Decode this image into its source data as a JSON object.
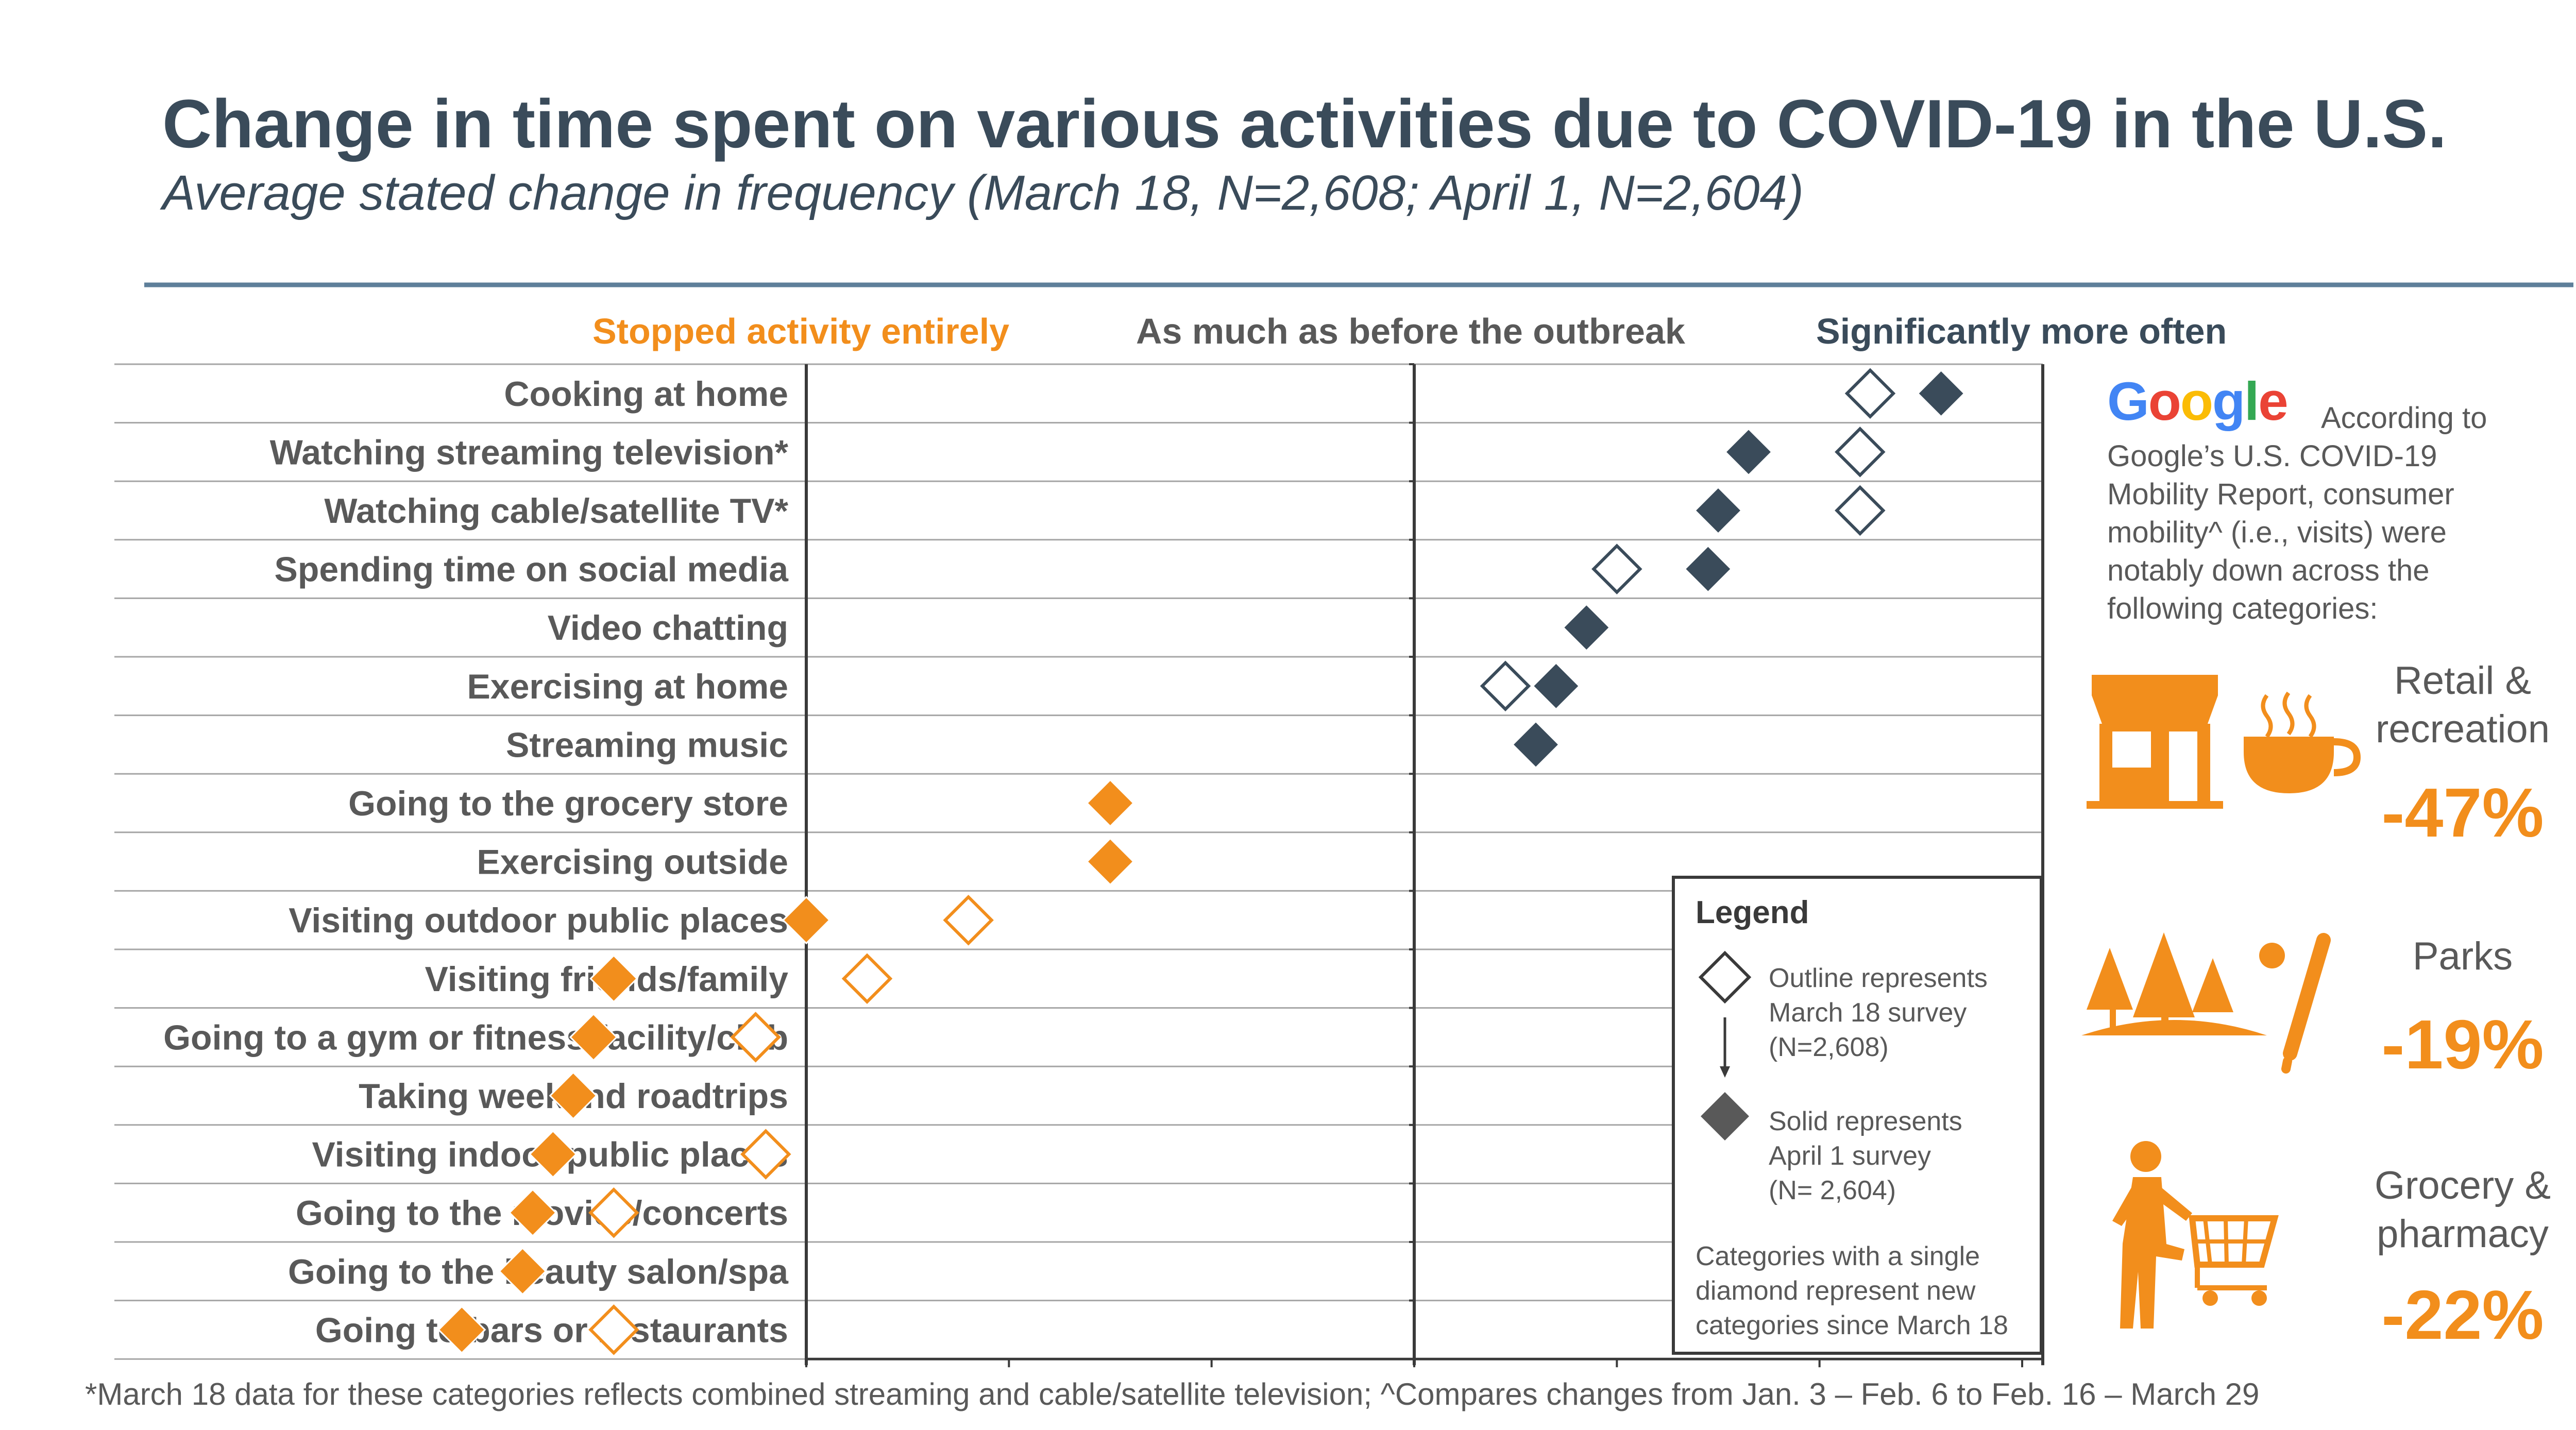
{
  "title": "Change in time spent on various activities due to COVID-19 in the U.S.",
  "subtitle": "Average stated change in frequency (March 18, N=2,608; April 1, N=2,604)",
  "headers": {
    "left": "Stopped activity entirely",
    "middle": "As much as before the outbreak",
    "right": "Significantly more often"
  },
  "colors": {
    "navy": "#3a4b5a",
    "orange": "#f28e1c",
    "gray_text": "#595959",
    "rule": "#5e7f9a"
  },
  "chart_data": {
    "type": "scatter",
    "title": "Change in time spent on various activities due to COVID-19 in the U.S.",
    "subtitle": "Average stated change in frequency (March 18, N=2,608; April 1, N=2,604)",
    "scale_labels": [
      "Stopped activity entirely",
      "As much as before the outbreak",
      "Significantly more often"
    ],
    "xlim": [
      -3,
      3
    ],
    "x_center": 0,
    "grid": true,
    "categories": [
      "Cooking at home",
      "Watching streaming television*",
      "Watching cable/satellite TV*",
      "Spending time on social media",
      "Video chatting",
      "Exercising at home",
      "Streaming music",
      "Going to the grocery store",
      "Exercising outside",
      "Visiting outdoor public places",
      "Visiting friends/family",
      "Going to a gym or fitness facility/club",
      "Taking weekend roadtrips",
      "Visiting indoor public places",
      "Going to the movies/concerts",
      "Going to the beauty salon/spa",
      "Going to bars or restaurants"
    ],
    "series": [
      {
        "name": "Outline represents March 18 survey (N=2,608)",
        "marker": "outline-diamond",
        "values": [
          2.25,
          2.2,
          2.2,
          1.0,
          null,
          0.45,
          null,
          null,
          null,
          -2.2,
          -2.7,
          -3.25,
          null,
          -3.2,
          -3.95,
          null,
          -3.95
        ]
      },
      {
        "name": "Solid represents April 1 survey (N= 2,604)",
        "marker": "solid-diamond",
        "values": [
          2.6,
          1.65,
          1.5,
          1.45,
          0.85,
          0.7,
          0.6,
          -1.5,
          -1.5,
          -3.0,
          -3.95,
          -4.05,
          -4.15,
          -4.25,
          -4.35,
          -4.4,
          -4.7
        ]
      }
    ],
    "point_colors": [
      "navy",
      "navy",
      "navy",
      "navy",
      "navy",
      "navy",
      "navy",
      "orange",
      "orange",
      "orange",
      "orange",
      "orange",
      "orange",
      "orange",
      "orange",
      "orange",
      "orange"
    ]
  },
  "legend": {
    "title": "Legend",
    "outline_text": [
      "Outline represents",
      "March 18 survey",
      "(N=2,608)"
    ],
    "solid_text": [
      "Solid represents",
      "April 1 survey",
      "(N= 2,604)"
    ],
    "note_text": [
      "Categories with a single",
      "diamond represent new",
      "categories since March 18"
    ]
  },
  "sidebar": {
    "logo_text": "Google",
    "intro": "According to Google’s U.S. COVID-19 Mobility Report, consumer mobility^ (i.e., visits) were notably down across the following categories:",
    "categories": [
      {
        "label": [
          "Retail &",
          "recreation"
        ],
        "value": "-47%",
        "icon": "storefront-coffee-icon"
      },
      {
        "label": [
          "Parks"
        ],
        "value": "-19%",
        "icon": "trees-baseball-icon"
      },
      {
        "label": [
          "Grocery &",
          "pharmacy"
        ],
        "value": "-22%",
        "icon": "shopper-cart-icon"
      }
    ]
  },
  "footnote": "*March 18 data for these categories reflects combined streaming and cable/satellite television; ^Compares changes from Jan. 3 – Feb. 6 to Feb. 16 – March 29"
}
